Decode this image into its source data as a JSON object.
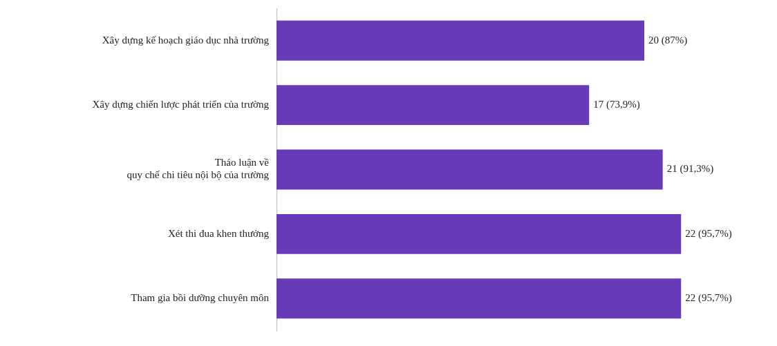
{
  "chart_data": {
    "type": "bar",
    "orientation": "horizontal",
    "categories": [
      "Xây dựng kế hoạch giáo dục nhà trường",
      "Xây dựng chiến lược phát triển của trường",
      "Tháo luận về\nquy chế chi tiêu nội bộ của trường",
      "Xét thi đua khen thưởng",
      "Tham gia bồi dưỡng chuyên môn"
    ],
    "values": [
      20,
      17,
      21,
      22,
      22
    ],
    "value_labels": [
      "20 (87%)",
      "17 (73,9%)",
      "21 (91,3%)",
      "22 (95,7%)",
      "22 (95,7%)"
    ],
    "color": "#673ab7",
    "grid": false,
    "legend": false,
    "tick_labels": "y"
  }
}
